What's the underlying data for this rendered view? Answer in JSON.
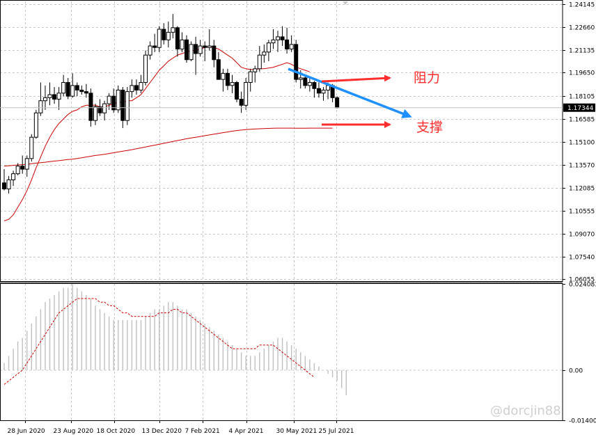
{
  "chart_data": {
    "type": "candlestick",
    "price_axis": {
      "ticks": [
        "1.24145",
        "1.22660",
        "1.21135",
        "1.19650",
        "1.18105",
        "1.16585",
        "1.15100",
        "1.13570",
        "1.12085",
        "1.10555",
        "1.09070",
        "1.07540",
        "1.06055"
      ],
      "range": [
        1.0594,
        1.2433
      ]
    },
    "current_price": "1.17344",
    "time_axis": {
      "labels": [
        "28 Jun 2020",
        "23 Aug 2020",
        "18 Oct 2020",
        "13 Dec 2020",
        "7 Feb 2021",
        "4 Apr 2021",
        "30 May 2021",
        "25 Jul 2021"
      ]
    },
    "candles": [
      [
        1.124,
        1.133,
        1.119,
        1.12
      ],
      [
        1.12,
        1.1285,
        1.117,
        1.126
      ],
      [
        1.126,
        1.132,
        1.122,
        1.13
      ],
      [
        1.13,
        1.137,
        1.129,
        1.135
      ],
      [
        1.135,
        1.142,
        1.13,
        1.133
      ],
      [
        1.133,
        1.142,
        1.128,
        1.14
      ],
      [
        1.14,
        1.156,
        1.138,
        1.154
      ],
      [
        1.154,
        1.172,
        1.153,
        1.17
      ],
      [
        1.17,
        1.19,
        1.168,
        1.178
      ],
      [
        1.178,
        1.188,
        1.172,
        1.18
      ],
      [
        1.18,
        1.19,
        1.175,
        1.182
      ],
      [
        1.182,
        1.187,
        1.176,
        1.179
      ],
      [
        1.179,
        1.187,
        1.172,
        1.183
      ],
      [
        1.183,
        1.195,
        1.181,
        1.19
      ],
      [
        1.19,
        1.193,
        1.179,
        1.181
      ],
      [
        1.181,
        1.196,
        1.18,
        1.188
      ],
      [
        1.188,
        1.19,
        1.181,
        1.185
      ],
      [
        1.185,
        1.188,
        1.182,
        1.184
      ],
      [
        1.184,
        1.189,
        1.18,
        1.183
      ],
      [
        1.183,
        1.186,
        1.161,
        1.165
      ],
      [
        1.165,
        1.176,
        1.162,
        1.174
      ],
      [
        1.174,
        1.179,
        1.168,
        1.17
      ],
      [
        1.17,
        1.178,
        1.165,
        1.176
      ],
      [
        1.176,
        1.183,
        1.172,
        1.181
      ],
      [
        1.181,
        1.186,
        1.17,
        1.172
      ],
      [
        1.172,
        1.188,
        1.17,
        1.185
      ],
      [
        1.185,
        1.187,
        1.16,
        1.165
      ],
      [
        1.165,
        1.187,
        1.162,
        1.184
      ],
      [
        1.184,
        1.192,
        1.18,
        1.188
      ],
      [
        1.188,
        1.192,
        1.182,
        1.185
      ],
      [
        1.185,
        1.195,
        1.183,
        1.19
      ],
      [
        1.19,
        1.211,
        1.188,
        1.208
      ],
      [
        1.208,
        1.217,
        1.205,
        1.214
      ],
      [
        1.214,
        1.222,
        1.21,
        1.213
      ],
      [
        1.213,
        1.227,
        1.21,
        1.225
      ],
      [
        1.225,
        1.229,
        1.215,
        1.218
      ],
      [
        1.218,
        1.23,
        1.213,
        1.223
      ],
      [
        1.223,
        1.235,
        1.219,
        1.226
      ],
      [
        1.226,
        1.227,
        1.207,
        1.212
      ],
      [
        1.212,
        1.223,
        1.21,
        1.218
      ],
      [
        1.218,
        1.221,
        1.203,
        1.205
      ],
      [
        1.205,
        1.217,
        1.204,
        1.215
      ],
      [
        1.215,
        1.22,
        1.195,
        1.209
      ],
      [
        1.209,
        1.218,
        1.207,
        1.214
      ],
      [
        1.214,
        1.217,
        1.204,
        1.213
      ],
      [
        1.213,
        1.225,
        1.211,
        1.214
      ],
      [
        1.214,
        1.218,
        1.2,
        1.205
      ],
      [
        1.205,
        1.21,
        1.192,
        1.192
      ],
      [
        1.192,
        1.199,
        1.184,
        1.196
      ],
      [
        1.196,
        1.199,
        1.185,
        1.188
      ],
      [
        1.188,
        1.195,
        1.183,
        1.19
      ],
      [
        1.19,
        1.191,
        1.177,
        1.179
      ],
      [
        1.179,
        1.184,
        1.17,
        1.175
      ],
      [
        1.175,
        1.193,
        1.172,
        1.19
      ],
      [
        1.19,
        1.199,
        1.184,
        1.197
      ],
      [
        1.197,
        1.201,
        1.19,
        1.199
      ],
      [
        1.199,
        1.214,
        1.197,
        1.208
      ],
      [
        1.208,
        1.215,
        1.203,
        1.21
      ],
      [
        1.21,
        1.218,
        1.204,
        1.216
      ],
      [
        1.216,
        1.225,
        1.212,
        1.218
      ],
      [
        1.218,
        1.224,
        1.21,
        1.22
      ],
      [
        1.22,
        1.227,
        1.214,
        1.218
      ],
      [
        1.218,
        1.226,
        1.209,
        1.212
      ],
      [
        1.212,
        1.221,
        1.21,
        1.215
      ],
      [
        1.215,
        1.218,
        1.19,
        1.192
      ],
      [
        1.192,
        1.198,
        1.186,
        1.193
      ],
      [
        1.193,
        1.195,
        1.186,
        1.188
      ],
      [
        1.188,
        1.194,
        1.184,
        1.19
      ],
      [
        1.19,
        1.191,
        1.18,
        1.186
      ],
      [
        1.186,
        1.19,
        1.18,
        1.183
      ],
      [
        1.183,
        1.187,
        1.178,
        1.185
      ],
      [
        1.185,
        1.19,
        1.179,
        1.188
      ],
      [
        1.188,
        1.189,
        1.177,
        1.18
      ],
      [
        1.18,
        1.181,
        1.173,
        1.1734
      ]
    ],
    "ma_short": [
      1.099,
      1.1,
      1.103,
      1.108,
      1.113,
      1.119,
      1.126,
      1.134,
      1.141,
      1.148,
      1.154,
      1.159,
      1.163,
      1.166,
      1.169,
      1.171,
      1.172,
      1.174,
      1.175,
      1.175,
      1.175,
      1.174,
      1.174,
      1.175,
      1.176,
      1.177,
      1.177,
      1.178,
      1.178,
      1.18,
      1.182,
      1.186,
      1.19,
      1.194,
      1.198,
      1.201,
      1.204,
      1.206,
      1.208,
      1.209,
      1.21,
      1.211,
      1.211,
      1.212,
      1.213,
      1.2135,
      1.213,
      1.212,
      1.21,
      1.208,
      1.206,
      1.203,
      1.2,
      1.199,
      1.1985,
      1.1985,
      1.199,
      1.199,
      1.1995,
      1.2,
      1.201,
      1.202,
      1.203,
      1.202,
      1.2,
      1.199,
      1.198,
      1.197
    ],
    "ma_short_start": 0,
    "ma_long": [
      1.135,
      1.1352,
      1.1355,
      1.1358,
      1.136,
      1.1363,
      1.1366,
      1.137,
      1.1373,
      1.1376,
      1.138,
      1.1383,
      1.1386,
      1.139,
      1.1393,
      1.1396,
      1.14,
      1.1405,
      1.141,
      1.1415,
      1.142,
      1.1424,
      1.1428,
      1.1433,
      1.1438,
      1.1443,
      1.1448,
      1.1453,
      1.1458,
      1.1464,
      1.147,
      1.1476,
      1.1482,
      1.1488,
      1.1494,
      1.15,
      1.1506,
      1.1512,
      1.1518,
      1.1524,
      1.153,
      1.1535,
      1.154,
      1.1545,
      1.155,
      1.1555,
      1.156,
      1.1565,
      1.157,
      1.1575,
      1.158,
      1.1584,
      1.1587,
      1.159,
      1.1592,
      1.1594,
      1.1596,
      1.1597,
      1.1598,
      1.1599,
      1.16,
      1.16,
      1.16,
      1.16,
      1.1599,
      1.1599,
      1.1599,
      1.16,
      1.16,
      1.16,
      1.16,
      1.16,
      1.16
    ],
    "ma_long_start": 0,
    "oscillator": {
      "ticks": [
        "0.024083",
        "0.00",
        "-0.014002"
      ],
      "range": [
        -0.014002,
        0.024083
      ],
      "histogram": [
        0.002,
        0.004,
        0.006,
        0.008,
        0.009,
        0.011,
        0.013,
        0.015,
        0.017,
        0.019,
        0.02,
        0.021,
        0.022,
        0.023,
        0.023,
        0.024,
        0.023,
        0.022,
        0.021,
        0.02,
        0.018,
        0.017,
        0.016,
        0.015,
        0.014,
        0.014,
        0.014,
        0.014,
        0.014,
        0.014,
        0.014,
        0.015,
        0.016,
        0.017,
        0.017,
        0.018,
        0.019,
        0.019,
        0.018,
        0.017,
        0.017,
        0.016,
        0.015,
        0.014,
        0.013,
        0.012,
        0.011,
        0.01,
        0.009,
        0.008,
        0.007,
        0.006,
        0.005,
        0.004,
        0.004,
        0.004,
        0.005,
        0.006,
        0.007,
        0.008,
        0.009,
        0.009,
        0.008,
        0.007,
        0.006,
        0.005,
        0.004,
        0.003,
        0.002,
        0.001,
        0.0,
        -0.001,
        -0.002,
        -0.003,
        -0.005,
        -0.007
      ],
      "signal": [
        -0.004,
        -0.003,
        -0.002,
        -0.001,
        0.0,
        0.002,
        0.004,
        0.006,
        0.008,
        0.01,
        0.012,
        0.014,
        0.016,
        0.017,
        0.018,
        0.019,
        0.02,
        0.02,
        0.02,
        0.02,
        0.02,
        0.019,
        0.019,
        0.018,
        0.018,
        0.017,
        0.016,
        0.016,
        0.015,
        0.015,
        0.015,
        0.015,
        0.015,
        0.015,
        0.016,
        0.016,
        0.016,
        0.017,
        0.017,
        0.016,
        0.016,
        0.015,
        0.014,
        0.013,
        0.012,
        0.011,
        0.01,
        0.009,
        0.008,
        0.007,
        0.006,
        0.006,
        0.006,
        0.006,
        0.006,
        0.006,
        0.007,
        0.007,
        0.007,
        0.007,
        0.006,
        0.005,
        0.004,
        0.003,
        0.002,
        0.001,
        0.0,
        -0.001,
        -0.002
      ]
    },
    "annotations": [
      {
        "label": "阻力",
        "color": "#ff2d2d"
      },
      {
        "label": "支撑",
        "color": "#ff2d2d"
      }
    ],
    "watermark": "@dorcjin88",
    "colors": {
      "candle": "#000000",
      "ma": "#cc0000",
      "trend": "#1e90ff",
      "arrow": "#ff2d2d",
      "histogram": "#c0c0c0",
      "signal": "#cc0000"
    },
    "grid": true
  }
}
